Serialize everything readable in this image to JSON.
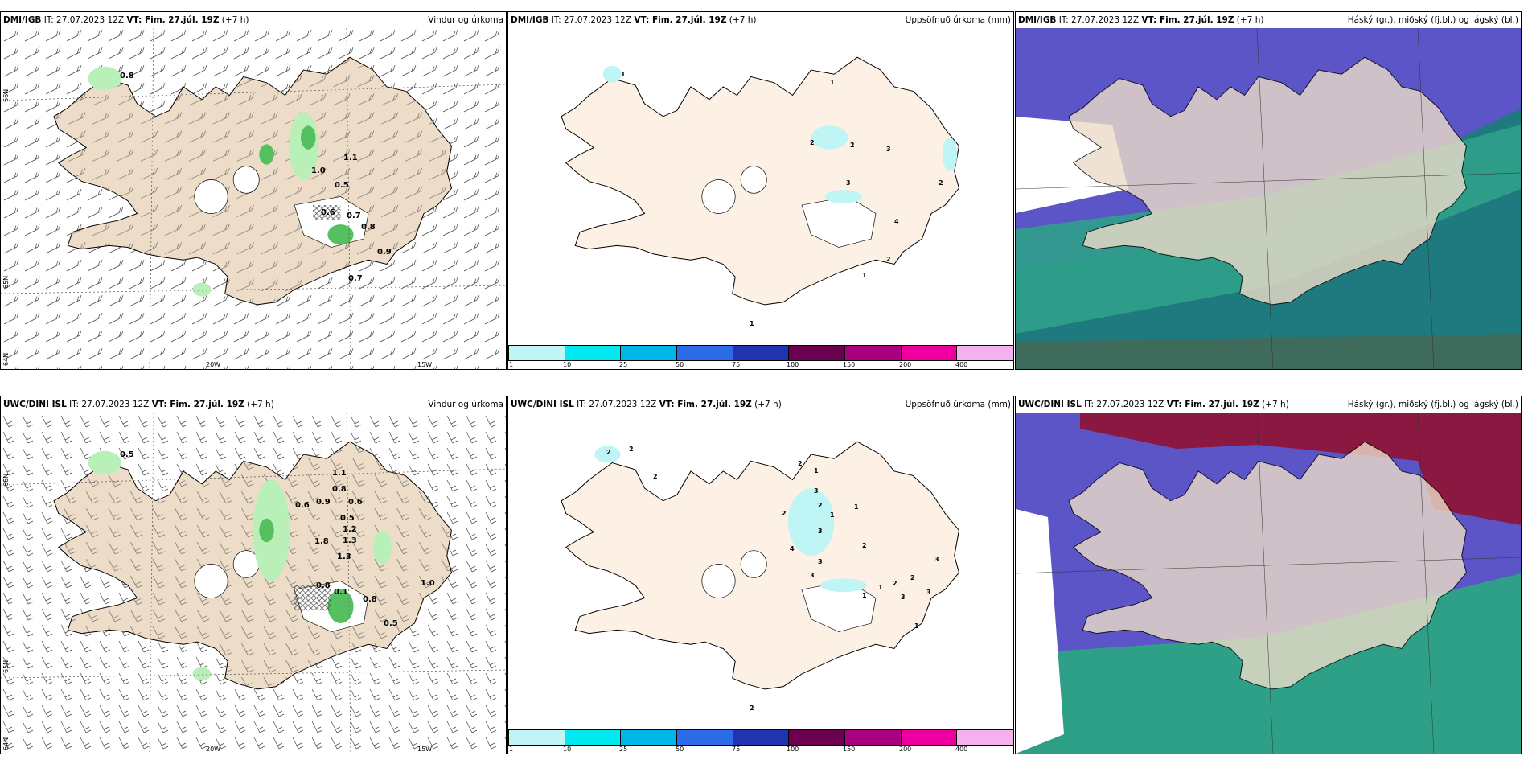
{
  "panels": [
    {
      "model": "DMI/IGB",
      "it": "IT: 27.07.2023 12Z",
      "vt": "VT: Fim. 27.júl. 19Z",
      "lead": "(+7 h)",
      "title": "Vindur og úrkoma",
      "lat_labels": [
        "66N",
        "65N",
        "64N"
      ],
      "lon_labels": [
        "20W",
        "15W"
      ],
      "values": [
        "0.8",
        "1.1",
        "1.0",
        "0.5",
        "0.6",
        "0.7",
        "0.8",
        "0.9",
        "0.7"
      ]
    },
    {
      "model": "DMI/IGB",
      "it": "IT: 27.07.2023 12Z",
      "vt": "VT: Fim. 27.júl. 19Z",
      "lead": "(+7 h)",
      "title": "Uppsöfnuð úrkoma (mm)",
      "values": [
        "1",
        "2",
        "2",
        "3",
        "3",
        "1",
        "2",
        "4",
        "1",
        "1",
        "2"
      ]
    },
    {
      "model": "DMI/IGB",
      "it": "IT: 27.07.2023 12Z",
      "vt": "VT: Fim. 27.júl. 19Z",
      "lead": "(+7 h)",
      "title": "Háský (gr.), miðský (fj.bl.) og lágský (bl.)"
    },
    {
      "model": "UWC/DINI ISL",
      "it": "IT: 27.07.2023 12Z",
      "vt": "VT: Fim. 27.júl. 19Z",
      "lead": "(+7 h)",
      "title": "Vindur og úrkoma",
      "lat_labels": [
        "66N",
        "65N",
        "64N"
      ],
      "lon_labels": [
        "20W",
        "15W"
      ],
      "values": [
        "0.5",
        "1.1",
        "0.8",
        "0.6",
        "0.9",
        "0.6",
        "0.5",
        "1.2",
        "1.8",
        "1.3",
        "1.3",
        "0.8",
        "0.1",
        "0.8",
        "1.0",
        "0.5"
      ]
    },
    {
      "model": "UWC/DINI ISL",
      "it": "IT: 27.07.2023 12Z",
      "vt": "VT: Fim. 27.júl. 19Z",
      "lead": "(+7 h)",
      "title": "Uppsöfnuð úrkoma (mm)",
      "values": [
        "2",
        "2",
        "2",
        "2",
        "1",
        "3",
        "2",
        "1",
        "2",
        "1",
        "3",
        "4",
        "2",
        "3",
        "3",
        "2",
        "1",
        "3",
        "2",
        "3",
        "3",
        "1",
        "2",
        "1"
      ]
    },
    {
      "model": "UWC/DINI ISL",
      "it": "IT: 27.07.2023 12Z",
      "vt": "VT: Fim. 27.júl. 19Z",
      "lead": "(+7 h)",
      "title": "Háský (gr.), miðský (fj.bl.) og lágský (bl.)"
    }
  ],
  "colorbar": {
    "labels": [
      "1",
      "10",
      "25",
      "50",
      "75",
      "100",
      "150",
      "200",
      "400"
    ],
    "colors": [
      "#bff5f5",
      "#00e8f0",
      "#00b8e8",
      "#2b6be8",
      "#2233b0",
      "#6b0050",
      "#a8007f",
      "#ee00a0",
      "#f5b0f0"
    ]
  },
  "colors": {
    "land": "#ecdcc8",
    "sea": "#ffffff",
    "precip_light": "#b8f0b8",
    "precip_mid": "#55c060",
    "precip_dark": "#2e7a35",
    "high_cloud": "#8a1840",
    "mid_cloud": "#5b55c8",
    "low_cloud": "#2fa088",
    "accum_land": "#fdf1e6"
  },
  "icons": [
    "wind-barb-icon"
  ]
}
